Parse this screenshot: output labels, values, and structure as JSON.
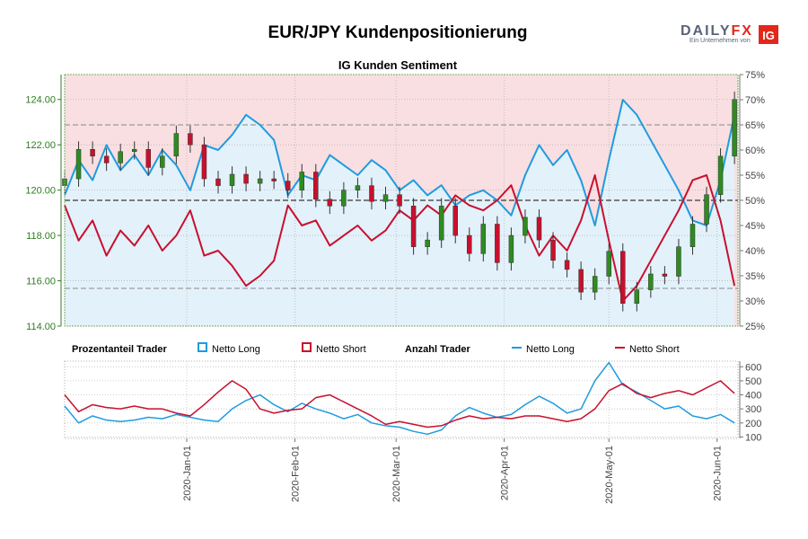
{
  "title": "EUR/JPY Kundenpositionierung",
  "subtitle": "IG Kunden Sentiment",
  "brand": {
    "logo_text": "DAILYFX",
    "logo_sub": "Ein Unternehmen von",
    "ig_badge": "IG",
    "colors": {
      "daily": "#5a6378",
      "fx": "#e2281b",
      "ig_bg": "#e2281b"
    }
  },
  "colors": {
    "long": "#1f9be0",
    "short": "#c8102e",
    "long_fill": "#e3f1fa",
    "short_fill": "#f9dfe1",
    "candle_up": "#2e8b20",
    "candle_down": "#c8102e",
    "price_axis": "#2e7d20"
  },
  "legend": {
    "pct_heading": "Prozentanteil Trader",
    "pct_long": "Netto Long",
    "pct_short": "Netto Short",
    "count_heading": "Anzahl Trader",
    "count_long": "Netto Long",
    "count_short": "Netto Short"
  },
  "chart_data": [
    {
      "type": "line",
      "name": "price_and_sentiment",
      "xlabel": "",
      "ylabel": "",
      "x_tick_labels": [
        "2020-Jan-01",
        "2020-Feb-01",
        "2020-Mar-01",
        "2020-Apr-01",
        "2020-May-01",
        "2020-Jun-01"
      ],
      "x_range_days": [
        -35,
        158
      ],
      "tick_days": [
        0,
        31,
        60,
        91,
        121,
        152
      ],
      "price_axis": {
        "ticks": [
          "114.00",
          "116.00",
          "118.00",
          "120.00",
          "122.00",
          "124.00"
        ],
        "ylim": [
          114,
          125.1
        ]
      },
      "pct_axis": {
        "ticks": [
          "25%",
          "30%",
          "35%",
          "40%",
          "45%",
          "50%",
          "55%",
          "60%",
          "65%",
          "70%",
          "75%"
        ],
        "ylim": [
          25,
          75
        ]
      },
      "reference_lines": [
        50,
        65,
        32.5
      ],
      "series": [
        {
          "name": "Netto Long",
          "x": [
            -35,
            -31,
            -27,
            -23,
            -19,
            -15,
            -11,
            -7,
            -3,
            1,
            5,
            9,
            13,
            17,
            21,
            25,
            29,
            33,
            37,
            41,
            45,
            49,
            53,
            57,
            61,
            65,
            69,
            73,
            77,
            81,
            85,
            89,
            93,
            97,
            101,
            105,
            109,
            113,
            117,
            121,
            125,
            129,
            133,
            137,
            141,
            145,
            149,
            153,
            157
          ],
          "values": [
            51,
            58,
            54,
            61,
            56,
            59,
            55,
            60,
            57,
            52,
            61,
            60,
            63,
            67,
            65,
            62,
            51,
            55,
            54,
            59,
            57,
            55,
            58,
            56,
            52,
            54,
            51,
            53,
            49,
            51,
            52,
            50,
            47,
            55,
            61,
            57,
            60,
            54,
            45,
            58,
            70,
            67,
            62,
            57,
            52,
            46,
            45,
            54,
            67
          ]
        },
        {
          "name": "Netto Short",
          "x": [
            -35,
            -31,
            -27,
            -23,
            -19,
            -15,
            -11,
            -7,
            -3,
            1,
            5,
            9,
            13,
            17,
            21,
            25,
            29,
            33,
            37,
            41,
            45,
            49,
            53,
            57,
            61,
            65,
            69,
            73,
            77,
            81,
            85,
            89,
            93,
            97,
            101,
            105,
            109,
            113,
            117,
            121,
            125,
            129,
            133,
            137,
            141,
            145,
            149,
            153,
            157
          ],
          "values": [
            49,
            42,
            46,
            39,
            44,
            41,
            45,
            40,
            43,
            48,
            39,
            40,
            37,
            33,
            35,
            38,
            49,
            45,
            46,
            41,
            43,
            45,
            42,
            44,
            48,
            46,
            49,
            47,
            51,
            49,
            48,
            50,
            53,
            45,
            39,
            43,
            40,
            46,
            55,
            42,
            30,
            33,
            38,
            43,
            48,
            54,
            55,
            46,
            33
          ]
        },
        {
          "name": "EUR/JPY",
          "x": [
            -35,
            -31,
            -27,
            -23,
            -19,
            -15,
            -11,
            -7,
            -3,
            1,
            5,
            9,
            13,
            17,
            21,
            25,
            29,
            33,
            37,
            41,
            45,
            49,
            53,
            57,
            61,
            65,
            69,
            73,
            77,
            81,
            85,
            89,
            93,
            97,
            101,
            105,
            109,
            113,
            117,
            121,
            125,
            129,
            133,
            137,
            141,
            145,
            149,
            153,
            157
          ],
          "values": [
            120.5,
            121.8,
            121.5,
            121.2,
            121.7,
            121.8,
            121.0,
            121.5,
            122.5,
            122.0,
            120.5,
            120.2,
            120.7,
            120.3,
            120.5,
            120.4,
            120.0,
            120.8,
            119.6,
            119.3,
            120.0,
            120.2,
            119.5,
            119.8,
            119.3,
            117.5,
            117.8,
            119.3,
            118.0,
            117.2,
            118.5,
            116.8,
            118.0,
            118.8,
            117.8,
            116.9,
            116.5,
            115.5,
            116.2,
            117.3,
            115.0,
            115.6,
            116.3,
            116.2,
            117.5,
            118.5,
            119.8,
            121.5,
            124.0
          ]
        }
      ]
    },
    {
      "type": "line",
      "name": "trader_counts",
      "y_axis": {
        "ticks": [
          "100",
          "200",
          "300",
          "400",
          "500",
          "600"
        ],
        "ylim": [
          90,
          640
        ]
      },
      "series": [
        {
          "name": "Netto Long",
          "x": [
            -35,
            -31,
            -27,
            -23,
            -19,
            -15,
            -11,
            -7,
            -3,
            1,
            5,
            9,
            13,
            17,
            21,
            25,
            29,
            33,
            37,
            41,
            45,
            49,
            53,
            57,
            61,
            65,
            69,
            73,
            77,
            81,
            85,
            89,
            93,
            97,
            101,
            105,
            109,
            113,
            117,
            121,
            125,
            129,
            133,
            137,
            141,
            145,
            149,
            153,
            157
          ],
          "values": [
            320,
            200,
            250,
            220,
            210,
            220,
            240,
            230,
            260,
            240,
            220,
            210,
            300,
            360,
            400,
            330,
            280,
            340,
            300,
            270,
            230,
            260,
            200,
            180,
            170,
            140,
            120,
            150,
            250,
            310,
            270,
            240,
            260,
            330,
            390,
            340,
            270,
            300,
            500,
            630,
            470,
            420,
            360,
            300,
            320,
            250,
            230,
            260,
            200
          ]
        },
        {
          "name": "Netto Short",
          "x": [
            -35,
            -31,
            -27,
            -23,
            -19,
            -15,
            -11,
            -7,
            -3,
            1,
            5,
            9,
            13,
            17,
            21,
            25,
            29,
            33,
            37,
            41,
            45,
            49,
            53,
            57,
            61,
            65,
            69,
            73,
            77,
            81,
            85,
            89,
            93,
            97,
            101,
            105,
            109,
            113,
            117,
            121,
            125,
            129,
            133,
            137,
            141,
            145,
            149,
            153,
            157
          ],
          "values": [
            400,
            280,
            330,
            310,
            300,
            320,
            300,
            300,
            270,
            250,
            330,
            420,
            500,
            440,
            300,
            270,
            290,
            300,
            380,
            400,
            350,
            300,
            250,
            190,
            210,
            190,
            170,
            180,
            220,
            250,
            230,
            240,
            230,
            250,
            250,
            230,
            210,
            230,
            300,
            430,
            480,
            410,
            380,
            410,
            430,
            400,
            450,
            500,
            410
          ]
        }
      ]
    }
  ]
}
